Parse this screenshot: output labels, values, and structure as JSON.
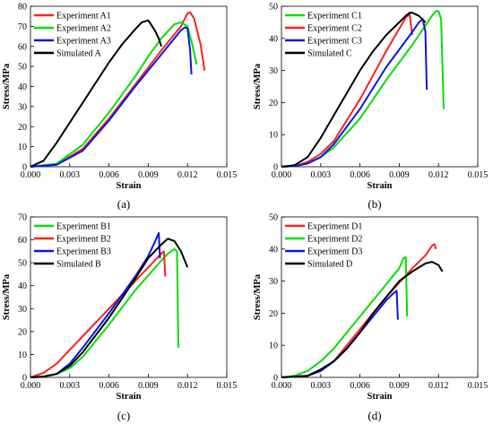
{
  "figure": {
    "colors": {
      "red": "#ff1f1f",
      "green": "#00e000",
      "blue": "#0a14e6",
      "black": "#000000"
    }
  },
  "chart_data": [
    {
      "type": "line",
      "panel_label": "(a)",
      "xlabel": "Strain",
      "ylabel": "Stress/MPa",
      "xlim": [
        0,
        0.015
      ],
      "ylim": [
        0,
        80
      ],
      "xticks": [
        "0.000",
        "0.003",
        "0.006",
        "0.009",
        "0.012",
        "0.015"
      ],
      "yticks": [
        "0",
        "10",
        "20",
        "30",
        "40",
        "50",
        "60",
        "70",
        "80"
      ],
      "legend_position": "top-left",
      "series": [
        {
          "name": "Experiment A1",
          "color": "#ff1f1f",
          "x": [
            0,
            0.002,
            0.004,
            0.006,
            0.008,
            0.01,
            0.011,
            0.0115,
            0.0118,
            0.012,
            0.0122,
            0.0125,
            0.0128,
            0.013,
            0.0133
          ],
          "y": [
            0,
            1,
            9,
            24,
            41,
            58,
            66,
            70,
            74,
            76.5,
            77,
            74,
            66,
            61,
            48
          ]
        },
        {
          "name": "Experiment A2",
          "color": "#00e000",
          "x": [
            0,
            0.002,
            0.004,
            0.006,
            0.008,
            0.009,
            0.01,
            0.011,
            0.0115,
            0.012,
            0.0124,
            0.0127
          ],
          "y": [
            0,
            1.5,
            11,
            27,
            45,
            55,
            64,
            71,
            72,
            70,
            60,
            51
          ]
        },
        {
          "name": "Experiment A3",
          "color": "#0a14e6",
          "x": [
            0,
            0.002,
            0.004,
            0.006,
            0.008,
            0.01,
            0.011,
            0.0115,
            0.0118,
            0.012,
            0.0122,
            0.0123
          ],
          "y": [
            0,
            1,
            8,
            23,
            40,
            56,
            64,
            68,
            69.5,
            69,
            58,
            46
          ]
        },
        {
          "name": "Simulated  A",
          "color": "#000000",
          "x": [
            0,
            0.001,
            0.002,
            0.003,
            0.004,
            0.005,
            0.006,
            0.007,
            0.008,
            0.0085,
            0.009,
            0.0095,
            0.0098,
            0.01
          ],
          "y": [
            0,
            3,
            12,
            22,
            32,
            42,
            52,
            61,
            68.5,
            72,
            73,
            68,
            64,
            60
          ]
        }
      ]
    },
    {
      "type": "line",
      "panel_label": "(b)",
      "xlabel": "Strain",
      "ylabel": "Stress/MPa",
      "xlim": [
        0,
        0.015
      ],
      "ylim": [
        0,
        50
      ],
      "xticks": [
        "0.000",
        "0.003",
        "0.006",
        "0.009",
        "0.012",
        "0.015"
      ],
      "yticks": [
        "0",
        "10",
        "20",
        "30",
        "40",
        "50"
      ],
      "legend_position": "top-left",
      "series": [
        {
          "name": "Experiment C1",
          "color": "#00e000",
          "x": [
            0,
            0.001,
            0.002,
            0.003,
            0.004,
            0.006,
            0.008,
            0.01,
            0.011,
            0.0115,
            0.0118,
            0.012,
            0.0122,
            0.0124
          ],
          "y": [
            0,
            0.2,
            1,
            3,
            6,
            15,
            27,
            38,
            44,
            47,
            48.5,
            48.5,
            46,
            18
          ]
        },
        {
          "name": "Experiment C2",
          "color": "#ff1f1f",
          "x": [
            0,
            0.001,
            0.002,
            0.003,
            0.004,
            0.006,
            0.008,
            0.009,
            0.0095,
            0.0098,
            0.0099,
            0.01
          ],
          "y": [
            0,
            0.2,
            1.5,
            4,
            8,
            21,
            36,
            43,
            46.5,
            47.5,
            44,
            41
          ]
        },
        {
          "name": "Experiment C3",
          "color": "#0a14e6",
          "x": [
            0,
            0.001,
            0.002,
            0.003,
            0.004,
            0.006,
            0.008,
            0.01,
            0.0105,
            0.0108,
            0.011,
            0.0111
          ],
          "y": [
            0,
            0.2,
            1,
            3,
            7,
            18,
            31,
            42,
            45,
            46,
            42,
            24
          ]
        },
        {
          "name": "Simulated  C",
          "color": "#000000",
          "x": [
            0,
            0.001,
            0.002,
            0.003,
            0.004,
            0.005,
            0.006,
            0.007,
            0.008,
            0.009,
            0.0095,
            0.0098,
            0.01,
            0.0105,
            0.011
          ],
          "y": [
            0,
            0.5,
            3,
            9,
            16,
            23,
            30,
            36,
            41,
            45,
            47,
            48,
            48,
            47,
            45
          ]
        }
      ]
    },
    {
      "type": "line",
      "panel_label": "(c)",
      "xlabel": "Strain",
      "ylabel": "Stress/MPa",
      "xlim": [
        0,
        0.015
      ],
      "ylim": [
        0,
        70
      ],
      "xticks": [
        "0.000",
        "0.003",
        "0.006",
        "0.009",
        "0.012",
        "0.015"
      ],
      "yticks": [
        "0",
        "10",
        "20",
        "30",
        "40",
        "50",
        "60",
        "70"
      ],
      "legend_position": "top-left",
      "series": [
        {
          "name": "Experiment B1",
          "color": "#00e000",
          "x": [
            0,
            0.001,
            0.002,
            0.003,
            0.004,
            0.006,
            0.008,
            0.01,
            0.0105,
            0.011,
            0.0112,
            0.0113
          ],
          "y": [
            0,
            0.5,
            1.5,
            4,
            9,
            23,
            38,
            51,
            54,
            56,
            55,
            13
          ]
        },
        {
          "name": "Experiment B2",
          "color": "#ff1f1f",
          "x": [
            0,
            0.001,
            0.002,
            0.003,
            0.004,
            0.006,
            0.008,
            0.009,
            0.0095,
            0.01,
            0.0102,
            0.0103
          ],
          "y": [
            0,
            2,
            6,
            12,
            18,
            30,
            42,
            48,
            51,
            54,
            55,
            44
          ]
        },
        {
          "name": "Experiment B3",
          "color": "#0a14e6",
          "x": [
            0,
            0.001,
            0.002,
            0.003,
            0.004,
            0.006,
            0.008,
            0.009,
            0.0095,
            0.0098,
            0.0099
          ],
          "y": [
            0,
            0.3,
            1.5,
            6,
            13,
            28,
            44,
            53,
            59,
            63,
            52
          ]
        },
        {
          "name": "Simulated  B",
          "color": "#000000",
          "x": [
            0,
            0.001,
            0.002,
            0.003,
            0.004,
            0.006,
            0.008,
            0.009,
            0.01,
            0.0105,
            0.011,
            0.0115,
            0.012
          ],
          "y": [
            0,
            0.3,
            1.5,
            5,
            11,
            26,
            43,
            52,
            58,
            60.5,
            59.5,
            55,
            48
          ]
        }
      ]
    },
    {
      "type": "line",
      "panel_label": "(d)",
      "xlabel": "Strain",
      "ylabel": "Stress/MPa",
      "xlim": [
        0,
        0.015
      ],
      "ylim": [
        0,
        50
      ],
      "xticks": [
        "0.000",
        "0.003",
        "0.006",
        "0.009",
        "0.012",
        "0.015"
      ],
      "yticks": [
        "0",
        "10",
        "20",
        "30",
        "40",
        "50"
      ],
      "legend_position": "top-left",
      "series": [
        {
          "name": "Experiment D1",
          "color": "#ff1f1f",
          "x": [
            0,
            0.002,
            0.003,
            0.004,
            0.005,
            0.006,
            0.008,
            0.01,
            0.011,
            0.0115,
            0.0117,
            0.0118
          ],
          "y": [
            0,
            0.5,
            2,
            5,
            10,
            15,
            25,
            34,
            38,
            41,
            41.5,
            40
          ]
        },
        {
          "name": "Experiment D2",
          "color": "#00e000",
          "x": [
            0,
            0.001,
            0.002,
            0.003,
            0.004,
            0.006,
            0.008,
            0.009,
            0.0093,
            0.0095,
            0.0096
          ],
          "y": [
            0,
            0.5,
            2,
            5,
            9,
            19,
            29,
            34,
            37,
            37.5,
            19
          ]
        },
        {
          "name": "Experiment D3",
          "color": "#0a14e6",
          "x": [
            0,
            0.002,
            0.003,
            0.004,
            0.005,
            0.006,
            0.007,
            0.008,
            0.0085,
            0.0088,
            0.0089
          ],
          "y": [
            0,
            0.5,
            2,
            5,
            9,
            14,
            19,
            24,
            26,
            27,
            18
          ]
        },
        {
          "name": "Simulated  D",
          "color": "#000000",
          "x": [
            0,
            0.002,
            0.003,
            0.004,
            0.005,
            0.006,
            0.007,
            0.008,
            0.009,
            0.01,
            0.011,
            0.0115,
            0.012,
            0.0123
          ],
          "y": [
            0,
            0.5,
            2.5,
            5,
            9,
            14,
            20,
            25,
            30,
            33,
            35.5,
            36,
            35,
            33
          ]
        }
      ]
    }
  ]
}
